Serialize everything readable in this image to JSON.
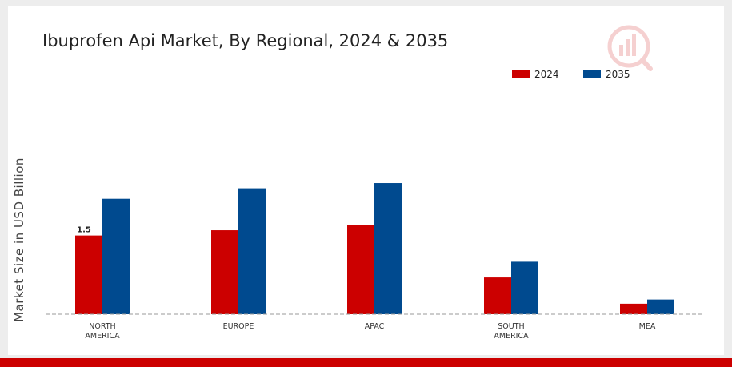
{
  "chart_data": {
    "type": "bar",
    "title": "Ibuprofen Api Market, By Regional, 2024 & 2035",
    "ylabel": "Market Size in USD Billion",
    "xlabel": "",
    "categories": [
      [
        "NORTH",
        "AMERICA"
      ],
      [
        "EUROPE"
      ],
      [
        "APAC"
      ],
      [
        "SOUTH",
        "AMERICA"
      ],
      [
        "MEA"
      ]
    ],
    "series": [
      {
        "name": "2024",
        "color": "#cc0000",
        "values": [
          1.5,
          1.6,
          1.7,
          0.7,
          0.2
        ]
      },
      {
        "name": "2035",
        "color": "#004a8f",
        "values": [
          2.2,
          2.4,
          2.5,
          1.0,
          0.28
        ]
      }
    ],
    "data_labels": [
      {
        "series": 0,
        "index": 0,
        "text": "1.5"
      }
    ],
    "ylim": [
      0,
      3.4
    ],
    "grid": false,
    "legend_position": "top-right",
    "baseline_style": "dashed"
  }
}
